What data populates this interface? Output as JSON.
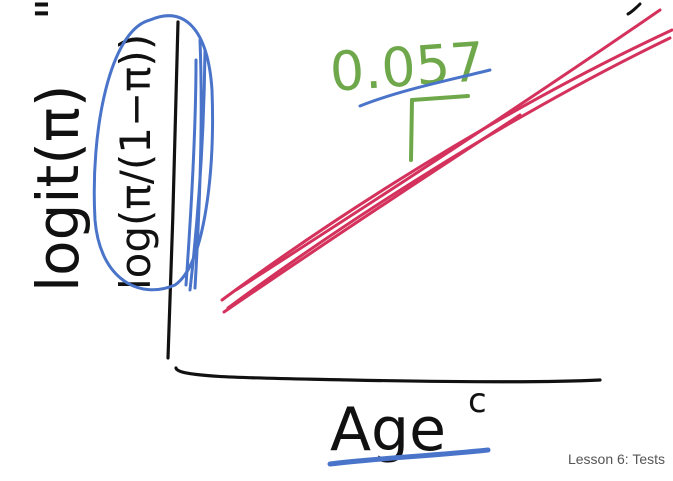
{
  "annotations": {
    "y_label_main": "logit(π)",
    "y_label_quote": "\"",
    "y_label_alt": "log(π/(1−π))",
    "slope_value": "0.057",
    "x_label": "Age",
    "x_label_superscript": "c"
  },
  "footer": {
    "text": "Lesson 6: Tests"
  },
  "colors": {
    "ink": "#111111",
    "blue": "#4a74c9",
    "red": "#d4325c",
    "green": "#6fa84a",
    "footer": "#555555"
  }
}
